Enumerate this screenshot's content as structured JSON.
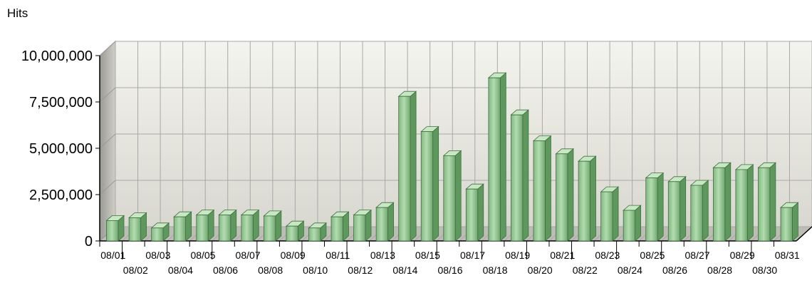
{
  "chart_data": {
    "type": "bar",
    "title": "",
    "ylabel": "Hits",
    "xlabel": "",
    "ylim": [
      0,
      10000000
    ],
    "yticks": [
      "0",
      "2,500,000",
      "5,000,000",
      "7,500,000",
      "10,000,000"
    ],
    "ytick_values": [
      0,
      2500000,
      5000000,
      7500000,
      10000000
    ],
    "grid": true,
    "legend": "none",
    "bar_color": "#8fc78f",
    "categories": [
      "08/01",
      "08/02",
      "08/03",
      "08/04",
      "08/05",
      "08/06",
      "08/07",
      "08/08",
      "08/09",
      "08/10",
      "08/11",
      "08/12",
      "08/13",
      "08/14",
      "08/15",
      "08/16",
      "08/17",
      "08/18",
      "08/19",
      "08/20",
      "08/21",
      "08/22",
      "08/23",
      "08/24",
      "08/25",
      "08/26",
      "08/27",
      "08/28",
      "08/29",
      "08/30",
      "08/31"
    ],
    "values": [
      1100000,
      1250000,
      700000,
      1300000,
      1400000,
      1400000,
      1400000,
      1350000,
      800000,
      700000,
      1300000,
      1400000,
      1800000,
      7800000,
      5900000,
      4600000,
      2800000,
      8800000,
      6800000,
      5400000,
      4700000,
      4300000,
      2650000,
      1650000,
      3400000,
      3200000,
      3000000,
      3950000,
      3850000,
      3950000,
      1800000
    ]
  }
}
